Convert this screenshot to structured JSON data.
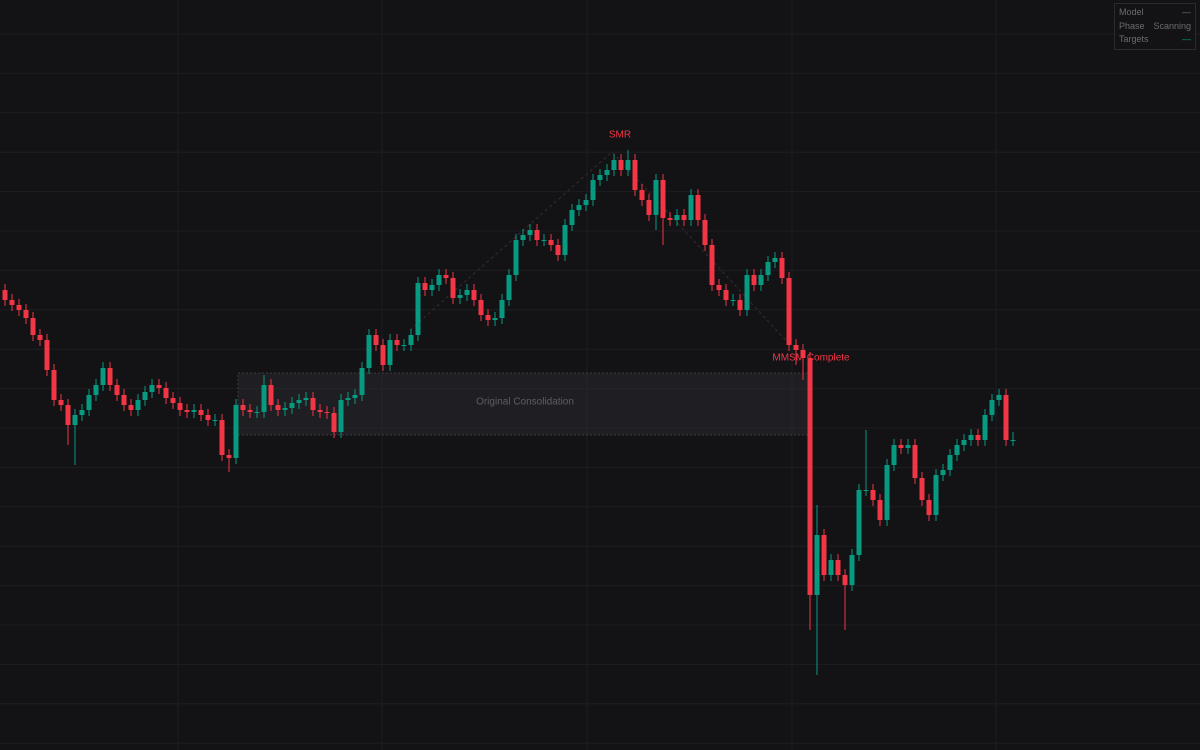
{
  "chart_data": {
    "type": "candlestick",
    "ylim": [
      0,
      750
    ],
    "grid": true,
    "up_color": "#089981",
    "down_color": "#f23645",
    "annotations": [
      "SMR",
      "MMSM Complete",
      "Original Consolidation"
    ],
    "open": [
      460,
      450,
      445,
      440,
      432,
      415,
      410,
      380,
      350,
      345,
      325,
      335,
      340,
      355,
      365,
      382,
      365,
      355,
      345,
      340,
      350,
      358,
      365,
      362,
      352,
      347,
      340,
      338,
      340,
      335,
      330,
      330,
      295,
      292,
      345,
      340,
      338,
      338,
      365,
      345,
      340,
      342,
      347,
      350,
      352,
      340,
      338,
      337,
      318,
      350,
      352,
      355,
      382,
      415,
      405,
      385,
      410,
      405,
      405,
      415,
      467,
      460,
      465,
      475,
      472,
      452,
      455,
      460,
      450,
      435,
      430,
      432,
      450,
      475,
      510,
      515,
      520,
      510,
      510,
      505,
      495,
      525,
      540,
      545,
      550,
      570,
      575,
      580,
      590,
      580,
      590,
      560,
      550,
      535,
      570,
      532,
      530,
      535,
      530,
      555,
      530,
      505,
      465,
      460,
      450,
      450,
      440,
      475,
      465,
      475,
      488,
      492,
      472,
      405,
      400,
      392,
      155,
      215,
      175,
      190,
      175,
      165,
      195,
      260,
      260,
      250,
      230,
      285,
      305,
      302,
      305,
      272,
      250,
      235,
      275,
      280,
      295,
      305,
      310,
      315,
      310,
      335,
      350,
      355,
      310
    ],
    "high": [
      466,
      456,
      451,
      446,
      438,
      421,
      416,
      386,
      356,
      351,
      341,
      346,
      361,
      371,
      388,
      388,
      371,
      361,
      351,
      356,
      364,
      371,
      371,
      368,
      358,
      353,
      346,
      346,
      346,
      341,
      336,
      336,
      301,
      351,
      351,
      346,
      344,
      375,
      371,
      351,
      348,
      353,
      356,
      358,
      358,
      346,
      344,
      343,
      356,
      358,
      361,
      388,
      421,
      421,
      411,
      416,
      416,
      411,
      421,
      473,
      473,
      471,
      481,
      481,
      478,
      461,
      466,
      466,
      456,
      441,
      438,
      456,
      481,
      516,
      521,
      526,
      526,
      516,
      516,
      511,
      531,
      546,
      551,
      556,
      576,
      581,
      586,
      596,
      596,
      600,
      596,
      566,
      556,
      576,
      576,
      538,
      541,
      541,
      561,
      561,
      536,
      511,
      471,
      466,
      456,
      456,
      481,
      481,
      481,
      494,
      498,
      498,
      478,
      411,
      406,
      398,
      245,
      221,
      196,
      196,
      181,
      201,
      266,
      320,
      266,
      256,
      291,
      311,
      311,
      311,
      311,
      278,
      256,
      281,
      286,
      301,
      311,
      316,
      321,
      321,
      341,
      356,
      361,
      361,
      318
    ],
    "low": [
      444,
      439,
      434,
      426,
      409,
      404,
      374,
      344,
      339,
      305,
      285,
      329,
      334,
      349,
      359,
      359,
      349,
      339,
      334,
      334,
      344,
      352,
      356,
      346,
      341,
      334,
      332,
      332,
      329,
      324,
      324,
      289,
      278,
      286,
      334,
      332,
      332,
      332,
      339,
      334,
      334,
      336,
      341,
      344,
      334,
      332,
      331,
      312,
      312,
      344,
      346,
      349,
      376,
      399,
      379,
      379,
      399,
      399,
      399,
      409,
      454,
      454,
      459,
      466,
      446,
      446,
      449,
      444,
      429,
      424,
      424,
      426,
      444,
      469,
      504,
      509,
      504,
      504,
      499,
      489,
      489,
      519,
      534,
      539,
      544,
      564,
      569,
      574,
      574,
      574,
      554,
      544,
      529,
      520,
      505,
      524,
      524,
      524,
      524,
      524,
      499,
      459,
      454,
      444,
      444,
      434,
      434,
      459,
      459,
      469,
      482,
      466,
      399,
      385,
      370,
      120,
      75,
      169,
      169,
      169,
      120,
      159,
      189,
      254,
      244,
      224,
      224,
      279,
      296,
      296,
      266,
      244,
      229,
      229,
      269,
      274,
      289,
      299,
      304,
      304,
      304,
      329,
      344,
      304,
      304
    ],
    "close": [
      450,
      445,
      440,
      432,
      415,
      410,
      380,
      350,
      345,
      325,
      335,
      340,
      355,
      365,
      382,
      365,
      355,
      345,
      340,
      350,
      358,
      365,
      362,
      352,
      347,
      340,
      338,
      340,
      335,
      330,
      330,
      295,
      292,
      345,
      340,
      338,
      338,
      365,
      345,
      340,
      342,
      347,
      350,
      352,
      340,
      338,
      337,
      318,
      350,
      352,
      355,
      382,
      415,
      405,
      385,
      410,
      405,
      405,
      415,
      467,
      460,
      465,
      475,
      472,
      452,
      455,
      460,
      450,
      435,
      430,
      432,
      450,
      475,
      510,
      515,
      520,
      510,
      510,
      505,
      495,
      525,
      540,
      545,
      550,
      570,
      575,
      580,
      590,
      580,
      590,
      560,
      550,
      535,
      570,
      532,
      530,
      535,
      530,
      555,
      530,
      505,
      465,
      460,
      450,
      450,
      440,
      475,
      465,
      475,
      488,
      492,
      472,
      405,
      400,
      392,
      155,
      215,
      175,
      190,
      175,
      165,
      195,
      260,
      260,
      250,
      230,
      285,
      305,
      302,
      305,
      272,
      250,
      235,
      275,
      280,
      295,
      305,
      310,
      315,
      310,
      335,
      350,
      355,
      310,
      310
    ]
  },
  "panel": {
    "rows": [
      [
        "Model",
        "—"
      ],
      [
        "Phase",
        "Scanning"
      ],
      [
        "Targets",
        "—"
      ]
    ]
  }
}
